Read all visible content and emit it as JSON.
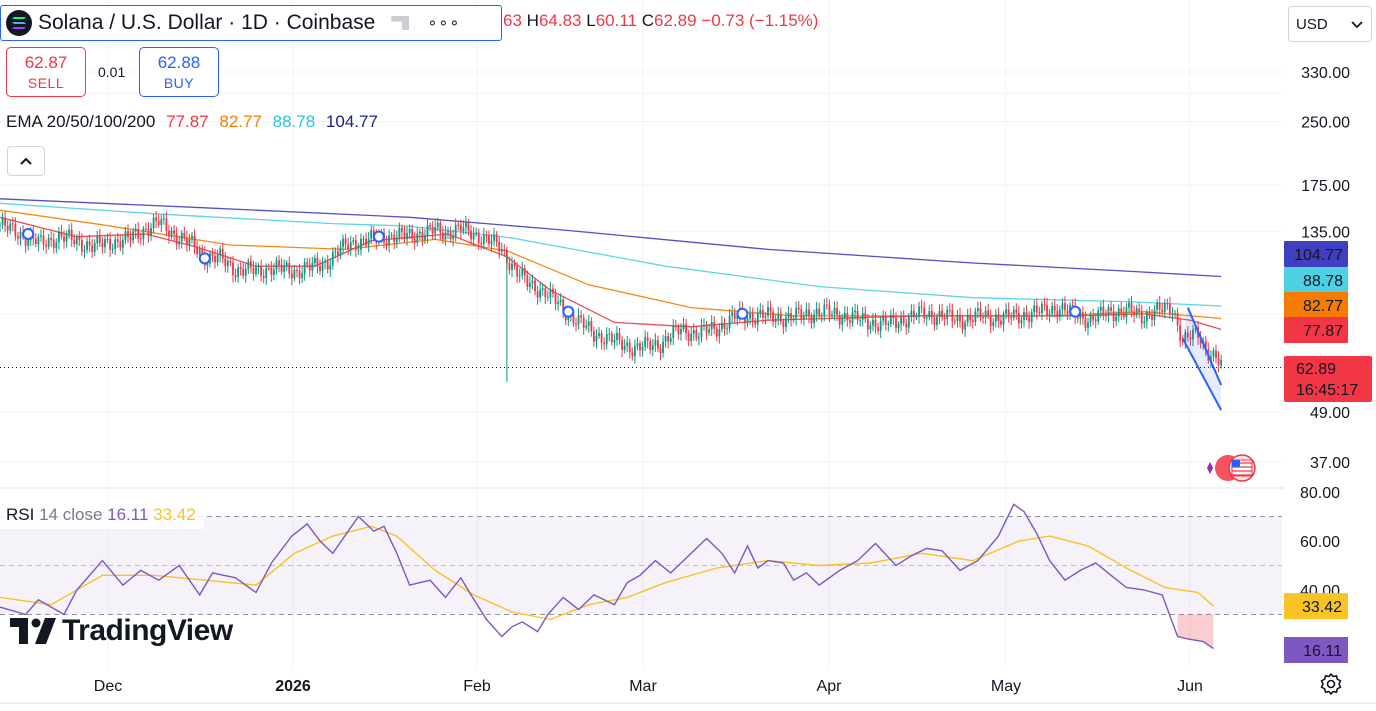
{
  "header": {
    "symbol_title": "Solana / U.S. Dollar · 1D · Coinbase",
    "more_label": "∘∘∘",
    "ohlc_open_tail": "63",
    "ohlc_h_key": "H",
    "ohlc_h": "64.83",
    "ohlc_l_key": "L",
    "ohlc_l": "60.11",
    "ohlc_c_key": "C",
    "ohlc_c": "62.89",
    "ohlc_change": "−0.73 (−1.15%)"
  },
  "trade": {
    "sell_price": "62.87",
    "sell_label": "SELL",
    "spread": "0.01",
    "buy_price": "62.88",
    "buy_label": "BUY"
  },
  "ema_legend": {
    "name": "EMA 20/50/100/200",
    "v20": "77.87",
    "v50": "82.77",
    "v100": "88.78",
    "v200": "104.77"
  },
  "currency": {
    "label": "USD"
  },
  "rsi_legend": {
    "name": "RSI",
    "params": "14 close",
    "rsi_value": "16.11",
    "ma_value": "33.42"
  },
  "brand": {
    "name": "TradingView"
  },
  "colors": {
    "up": "#089981",
    "down": "#f23645",
    "ema20": "#f23645",
    "ema50": "#f57c00",
    "ema100": "#4dd0e1",
    "ema200": "#3f3fbf",
    "rsi_line": "#7e57c2",
    "rsi_ma": "#f7c325",
    "channel": "#2962ff"
  },
  "chart_data": [
    {
      "type": "candlestick",
      "title": "Solana / U.S. Dollar · 1D · Coinbase",
      "x_ticks": [
        "Dec",
        "2026",
        "Feb",
        "Mar",
        "Apr",
        "May",
        "Jun"
      ],
      "y_scale": "log",
      "y_ticks": [
        "330.00",
        "250.00",
        "175.00",
        "135.00",
        "49.00",
        "37.00"
      ],
      "y_tick_values": [
        330,
        250,
        175,
        135,
        49,
        37
      ],
      "close_path": [
        [
          0,
          140
        ],
        [
          9,
          132
        ],
        [
          16,
          126
        ],
        [
          23,
          131
        ],
        [
          30,
          128
        ],
        [
          36,
          124
        ],
        [
          43,
          127
        ],
        [
          50,
          129
        ],
        [
          57,
          137
        ],
        [
          62,
          142
        ],
        [
          68,
          133
        ],
        [
          76,
          124
        ],
        [
          80,
          117
        ],
        [
          86,
          116
        ],
        [
          92,
          109
        ],
        [
          101,
          108
        ],
        [
          106,
          110
        ],
        [
          116,
          108
        ],
        [
          123,
          111
        ],
        [
          128,
          114
        ],
        [
          136,
          126
        ],
        [
          143,
          128
        ],
        [
          150,
          131
        ],
        [
          157,
          131
        ],
        [
          162,
          133
        ],
        [
          167,
          134
        ],
        [
          170,
          136
        ],
        [
          175,
          134
        ],
        [
          180,
          137
        ],
        [
          188,
          131
        ],
        [
          195,
          124
        ],
        [
          198,
          117
        ],
        [
          201,
          109
        ],
        [
          206,
          101
        ],
        [
          213,
          96
        ],
        [
          222,
          85
        ],
        [
          232,
          76
        ],
        [
          240,
          73
        ],
        [
          248,
          70
        ],
        [
          258,
          72
        ],
        [
          266,
          78
        ],
        [
          272,
          76
        ],
        [
          281,
          79
        ],
        [
          288,
          84
        ],
        [
          300,
          84
        ],
        [
          308,
          83
        ],
        [
          315,
          85
        ],
        [
          322,
          86
        ],
        [
          330,
          84
        ],
        [
          337,
          82
        ],
        [
          345,
          80
        ],
        [
          352,
          82
        ],
        [
          360,
          85
        ],
        [
          368,
          84
        ],
        [
          375,
          82
        ],
        [
          383,
          84
        ],
        [
          391,
          83
        ],
        [
          398,
          84
        ],
        [
          406,
          86
        ],
        [
          413,
          88
        ],
        [
          420,
          85
        ],
        [
          426,
          82
        ],
        [
          433,
          86
        ],
        [
          441,
          86
        ],
        [
          447,
          84
        ],
        [
          451,
          86
        ],
        [
          458,
          88
        ],
        [
          462,
          73
        ],
        [
          464,
          74
        ],
        [
          466,
          75
        ],
        [
          468,
          76
        ],
        [
          471,
          70
        ],
        [
          473,
          68
        ],
        [
          475,
          66
        ],
        [
          477,
          63.5
        ]
      ],
      "ema": [
        {
          "name": "EMA 20",
          "last": 77.87,
          "values": [
            [
              0,
              146
            ],
            [
              30,
              131
            ],
            [
              57,
              133
            ],
            [
              76,
              124
            ],
            [
              100,
              111
            ],
            [
              123,
              111
            ],
            [
              145,
              128
            ],
            [
              175,
              133
            ],
            [
              198,
              117
            ],
            [
              215,
              97
            ],
            [
              240,
              81
            ],
            [
              270,
              79
            ],
            [
              300,
              82
            ],
            [
              330,
              83
            ],
            [
              360,
              84
            ],
            [
              390,
              84
            ],
            [
              420,
              84
            ],
            [
              447,
              85
            ],
            [
              465,
              82
            ],
            [
              477,
              77.87
            ]
          ]
        },
        {
          "name": "EMA 50",
          "last": 82.77,
          "values": [
            [
              0,
              152
            ],
            [
              40,
              140
            ],
            [
              90,
              125
            ],
            [
              135,
              122
            ],
            [
              170,
              129
            ],
            [
              198,
              121
            ],
            [
              230,
              100
            ],
            [
              270,
              88
            ],
            [
              310,
              84
            ],
            [
              360,
              84
            ],
            [
              410,
              84
            ],
            [
              447,
              86
            ],
            [
              477,
              82.77
            ]
          ]
        },
        {
          "name": "EMA 100",
          "last": 88.78,
          "values": [
            [
              0,
              158
            ],
            [
              60,
              149
            ],
            [
              130,
              141
            ],
            [
              160,
              139
            ],
            [
              200,
              130
            ],
            [
              260,
              111
            ],
            [
              320,
              99
            ],
            [
              380,
              93
            ],
            [
              440,
              91
            ],
            [
              477,
              88.78
            ]
          ]
        },
        {
          "name": "EMA 200",
          "last": 104.77,
          "values": [
            [
              0,
              162
            ],
            [
              80,
              154
            ],
            [
              160,
              146
            ],
            [
              220,
              136
            ],
            [
              300,
              122
            ],
            [
              380,
              113
            ],
            [
              440,
              108
            ],
            [
              477,
              104.77
            ]
          ]
        }
      ],
      "markers": [
        [
          11,
          133
        ],
        [
          80,
          116
        ],
        [
          148,
          131
        ],
        [
          222,
          86
        ],
        [
          290,
          85
        ],
        [
          420,
          86
        ]
      ],
      "channel": {
        "upper": [
          [
            464,
            88
          ],
          [
            477,
            57
          ]
        ],
        "lower": [
          [
            462,
            74
          ],
          [
            477,
            49.5
          ]
        ]
      },
      "price_labels": [
        {
          "text": "104.77",
          "value": 104.77,
          "color": "#3f3fbf"
        },
        {
          "text": "88.78",
          "value": 88.78,
          "color": "#4dd0e1"
        },
        {
          "text": "82.77",
          "value": 82.77,
          "color": "#f57c00"
        },
        {
          "text": "77.87",
          "value": 77.87,
          "color": "#f23645"
        }
      ],
      "last_price": {
        "price": "62.89",
        "countdown": "16:45:17",
        "value": 62.89
      }
    },
    {
      "type": "line",
      "title": "RSI 14 close",
      "y_ticks": [
        "80.00",
        "60.00",
        "40.00"
      ],
      "y_tick_values": [
        80,
        60,
        40
      ],
      "bands": [
        30,
        50,
        70
      ],
      "rsi": [
        [
          0,
          33
        ],
        [
          10,
          30
        ],
        [
          15,
          36
        ],
        [
          25,
          30
        ],
        [
          30,
          40
        ],
        [
          40,
          52
        ],
        [
          48,
          42
        ],
        [
          55,
          48
        ],
        [
          62,
          44
        ],
        [
          70,
          50
        ],
        [
          78,
          38
        ],
        [
          83,
          47
        ],
        [
          92,
          45
        ],
        [
          100,
          39
        ],
        [
          106,
          51
        ],
        [
          114,
          62
        ],
        [
          120,
          67
        ],
        [
          125,
          60
        ],
        [
          130,
          55
        ],
        [
          140,
          70
        ],
        [
          146,
          64
        ],
        [
          150,
          66
        ],
        [
          155,
          55
        ],
        [
          160,
          42
        ],
        [
          168,
          44
        ],
        [
          174,
          37
        ],
        [
          180,
          45
        ],
        [
          184,
          38
        ],
        [
          190,
          28
        ],
        [
          196,
          21
        ],
        [
          200,
          25
        ],
        [
          204,
          27
        ],
        [
          210,
          23
        ],
        [
          214,
          30
        ],
        [
          220,
          37
        ],
        [
          226,
          32
        ],
        [
          232,
          38
        ],
        [
          236,
          36
        ],
        [
          240,
          34
        ],
        [
          245,
          43
        ],
        [
          250,
          46
        ],
        [
          256,
          52
        ],
        [
          262,
          47
        ],
        [
          266,
          51
        ],
        [
          271,
          56
        ],
        [
          276,
          61
        ],
        [
          282,
          55
        ],
        [
          287,
          47
        ],
        [
          292,
          58
        ],
        [
          296,
          49
        ],
        [
          300,
          52
        ],
        [
          306,
          51
        ],
        [
          310,
          44
        ],
        [
          315,
          47
        ],
        [
          320,
          42
        ],
        [
          328,
          48
        ],
        [
          335,
          52
        ],
        [
          342,
          59
        ],
        [
          350,
          50
        ],
        [
          356,
          54
        ],
        [
          362,
          57
        ],
        [
          368,
          56
        ],
        [
          375,
          48
        ],
        [
          382,
          52
        ],
        [
          390,
          62
        ],
        [
          396,
          75
        ],
        [
          400,
          72
        ],
        [
          405,
          63
        ],
        [
          410,
          52
        ],
        [
          416,
          44
        ],
        [
          422,
          48
        ],
        [
          428,
          51
        ],
        [
          434,
          46
        ],
        [
          440,
          41
        ],
        [
          447,
          40
        ],
        [
          454,
          38
        ],
        [
          460,
          21
        ],
        [
          464,
          20
        ],
        [
          470,
          19
        ],
        [
          474,
          16.11
        ]
      ],
      "rsi_ma": [
        [
          0,
          37
        ],
        [
          20,
          34
        ],
        [
          40,
          46
        ],
        [
          60,
          46
        ],
        [
          80,
          44
        ],
        [
          100,
          42
        ],
        [
          115,
          55
        ],
        [
          130,
          62
        ],
        [
          145,
          66
        ],
        [
          155,
          62
        ],
        [
          170,
          48
        ],
        [
          185,
          38
        ],
        [
          200,
          31
        ],
        [
          215,
          28
        ],
        [
          230,
          34
        ],
        [
          245,
          37
        ],
        [
          260,
          43
        ],
        [
          280,
          49
        ],
        [
          300,
          52
        ],
        [
          320,
          50
        ],
        [
          340,
          51
        ],
        [
          360,
          55
        ],
        [
          380,
          52
        ],
        [
          398,
          60
        ],
        [
          410,
          62
        ],
        [
          425,
          58
        ],
        [
          440,
          49
        ],
        [
          455,
          41
        ],
        [
          468,
          39
        ],
        [
          474,
          33.42
        ]
      ],
      "legend_values": {
        "rsi": "16.11",
        "ma": "33.42"
      }
    }
  ]
}
